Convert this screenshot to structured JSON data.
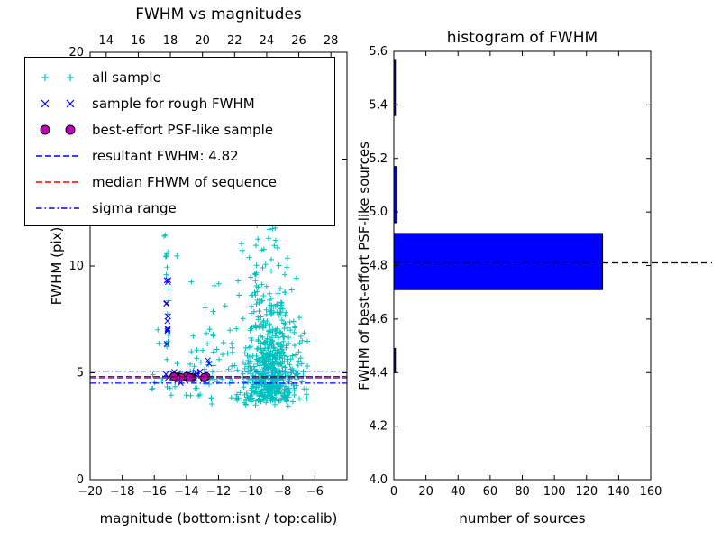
{
  "left_plot": {
    "title": "FWHM vs magnitudes",
    "xlabel": "magnitude (bottom:isnt / top:calib)",
    "ylabel": "FWHM (pix)",
    "bottom_ticks": [
      {
        "v": -20,
        "label": "−20"
      },
      {
        "v": -18,
        "label": "−18"
      },
      {
        "v": -16,
        "label": "−16"
      },
      {
        "v": -14,
        "label": "−14"
      },
      {
        "v": -12,
        "label": "−12"
      },
      {
        "v": -10,
        "label": "−10"
      },
      {
        "v": -8,
        "label": "−8"
      },
      {
        "v": -6,
        "label": "−6"
      }
    ],
    "top_ticks": [
      {
        "v": 14,
        "label": "14"
      },
      {
        "v": 16,
        "label": "16"
      },
      {
        "v": 18,
        "label": "18"
      },
      {
        "v": 20,
        "label": "20"
      },
      {
        "v": 22,
        "label": "22"
      },
      {
        "v": 24,
        "label": "24"
      },
      {
        "v": 26,
        "label": "26"
      },
      {
        "v": 28,
        "label": "28"
      }
    ],
    "y_ticks": [
      {
        "v": 0,
        "label": "0"
      },
      {
        "v": 5,
        "label": "5"
      },
      {
        "v": 10,
        "label": "10"
      },
      {
        "v": 15,
        "label": "15"
      },
      {
        "v": 20,
        "label": "20"
      }
    ]
  },
  "right_plot": {
    "title": "histogram of FWHM",
    "xlabel": "number of sources",
    "ylabel": "FWHM of best-effort PSF-like sources",
    "x_ticks": [
      {
        "v": 0,
        "label": "0"
      },
      {
        "v": 20,
        "label": "20"
      },
      {
        "v": 40,
        "label": "40"
      },
      {
        "v": 60,
        "label": "60"
      },
      {
        "v": 80,
        "label": "80"
      },
      {
        "v": 100,
        "label": "100"
      },
      {
        "v": 120,
        "label": "120"
      },
      {
        "v": 140,
        "label": "140"
      },
      {
        "v": 160,
        "label": "160"
      }
    ],
    "y_ticks": [
      {
        "v": 4.0,
        "label": "4.0"
      },
      {
        "v": 4.2,
        "label": "4.2"
      },
      {
        "v": 4.4,
        "label": "4.4"
      },
      {
        "v": 4.6,
        "label": "4.6"
      },
      {
        "v": 4.8,
        "label": "4.8"
      },
      {
        "v": 5.0,
        "label": "5.0"
      },
      {
        "v": 5.2,
        "label": "5.2"
      },
      {
        "v": 5.4,
        "label": "5.4"
      },
      {
        "v": 5.6,
        "label": "5.6"
      }
    ]
  },
  "legend": {
    "items": [
      {
        "label": "all sample",
        "marker": "plus",
        "color": "#00bfbf"
      },
      {
        "label": "sample for rough FWHM",
        "marker": "x",
        "color": "#0000ff"
      },
      {
        "label": "best-effort PSF-like sample",
        "marker": "circle",
        "color": "#bf00bf"
      },
      {
        "label": "resultant FWHM: 4.82",
        "marker": "dashed-line",
        "color": "#0000ff"
      },
      {
        "label": "median FHWM of sequence",
        "marker": "dashed-line",
        "color": "#ff0000"
      },
      {
        "label": "sigma range",
        "marker": "dashdot-line",
        "color": "#0000ff"
      }
    ]
  },
  "chart_data": [
    {
      "type": "scatter",
      "title": "FWHM vs magnitudes",
      "xlabel": "magnitude (bottom:isnt / top:calib)",
      "ylabel": "FWHM (pix)",
      "xlim": [
        -20,
        -4
      ],
      "ylim": [
        0,
        20
      ],
      "top_axis": {
        "description": "calib magnitude, top value = bottom value + 33",
        "offset_from_bottom": 33,
        "ticks": [
          14,
          16,
          18,
          20,
          22,
          24,
          26,
          28
        ]
      },
      "series": [
        {
          "name": "all sample",
          "marker": "plus",
          "color": "#00bfbf",
          "point_count": 849,
          "clusters": [
            {
              "count": 540,
              "x": {
                "dist": "gauss",
                "mean": -8.75,
                "sd": 0.75
              },
              "y": {
                "dist": "absgauss",
                "base": 3.65,
                "scale": 2.1,
                "max": 13.5
              }
            },
            {
              "count": 130,
              "x": {
                "dist": "gauss",
                "mean": -9.3,
                "sd": 0.75
              },
              "y": {
                "dist": "uniform",
                "min": 8,
                "max": 20
              }
            },
            {
              "count": 120,
              "x": {
                "dist": "uniform",
                "min": -13.6,
                "max": -6.3
              },
              "y": {
                "dist": "absgauss",
                "base": 3.4,
                "scale": 2.6,
                "max": 14
              }
            },
            {
              "count": 45,
              "x": {
                "dist": "uniform",
                "min": -16.3,
                "max": -12.2
              },
              "y": {
                "dist": "absgauss",
                "base": 3.9,
                "scale": 2.4,
                "max": 13
              }
            },
            {
              "count": 14,
              "x": {
                "dist": "gauss",
                "mean": -15.2,
                "sd": 0.06
              },
              "y": {
                "dist": "uniform",
                "min": 4.2,
                "max": 12.0
              }
            }
          ]
        },
        {
          "name": "sample for rough FWHM",
          "marker": "x",
          "color": "#0000ff",
          "point_count": 31,
          "clusters": [
            {
              "count": 13,
              "x": {
                "dist": "gauss",
                "mean": -15.2,
                "sd": 0.06
              },
              "y": {
                "dist": "uniform",
                "min": 4.5,
                "max": 9.5
              }
            },
            {
              "count": 16,
              "x": {
                "dist": "uniform",
                "min": -14.9,
                "max": -12.9
              },
              "y": {
                "dist": "gauss",
                "mean": 4.85,
                "sd": 0.12
              }
            },
            {
              "count": 2,
              "x": {
                "dist": "uniform",
                "min": -13.0,
                "max": -12.4
              },
              "y": {
                "dist": "gauss",
                "mean": 5.5,
                "sd": 0.1
              }
            }
          ]
        },
        {
          "name": "best-effort PSF-like sample",
          "marker": "circle",
          "color": "#bf00bf",
          "point_count": 13,
          "clusters": [
            {
              "count": 13,
              "x": {
                "dist": "uniform",
                "min": -14.8,
                "max": -12.7
              },
              "y": {
                "dist": "gauss",
                "mean": 4.8,
                "sd": 0.035
              }
            }
          ]
        }
      ],
      "hlines": [
        {
          "label": "resultant FWHM: 4.82",
          "y": 4.82,
          "style": "dashed",
          "color": "#0000ff"
        },
        {
          "label": "median FHWM of sequence",
          "y": 4.76,
          "style": "dashed",
          "color": "#ff0000"
        },
        {
          "label": "sigma range upper",
          "y": 5.08,
          "style": "dashdot",
          "color": "#0000ff"
        },
        {
          "label": "sigma range lower",
          "y": 4.52,
          "style": "dashdot",
          "color": "#0000ff"
        }
      ]
    },
    {
      "type": "bar",
      "orientation": "horizontal",
      "title": "histogram of FWHM",
      "xlabel": "number of sources",
      "ylabel": "FWHM of best-effort PSF-like sources",
      "xlim": [
        0,
        160
      ],
      "ylim": [
        4.0,
        5.6
      ],
      "bar_color": "#0000ff",
      "bars": [
        {
          "y0": 4.4,
          "y1": 4.49,
          "count": 1
        },
        {
          "y0": 4.71,
          "y1": 4.92,
          "count": 130
        },
        {
          "y0": 4.96,
          "y1": 5.17,
          "count": 2
        },
        {
          "y0": 5.36,
          "y1": 5.57,
          "count": 1
        }
      ],
      "median_line": {
        "y": 4.81,
        "style": "dashed",
        "color": "#000000",
        "extends_past_axes": true
      }
    }
  ]
}
